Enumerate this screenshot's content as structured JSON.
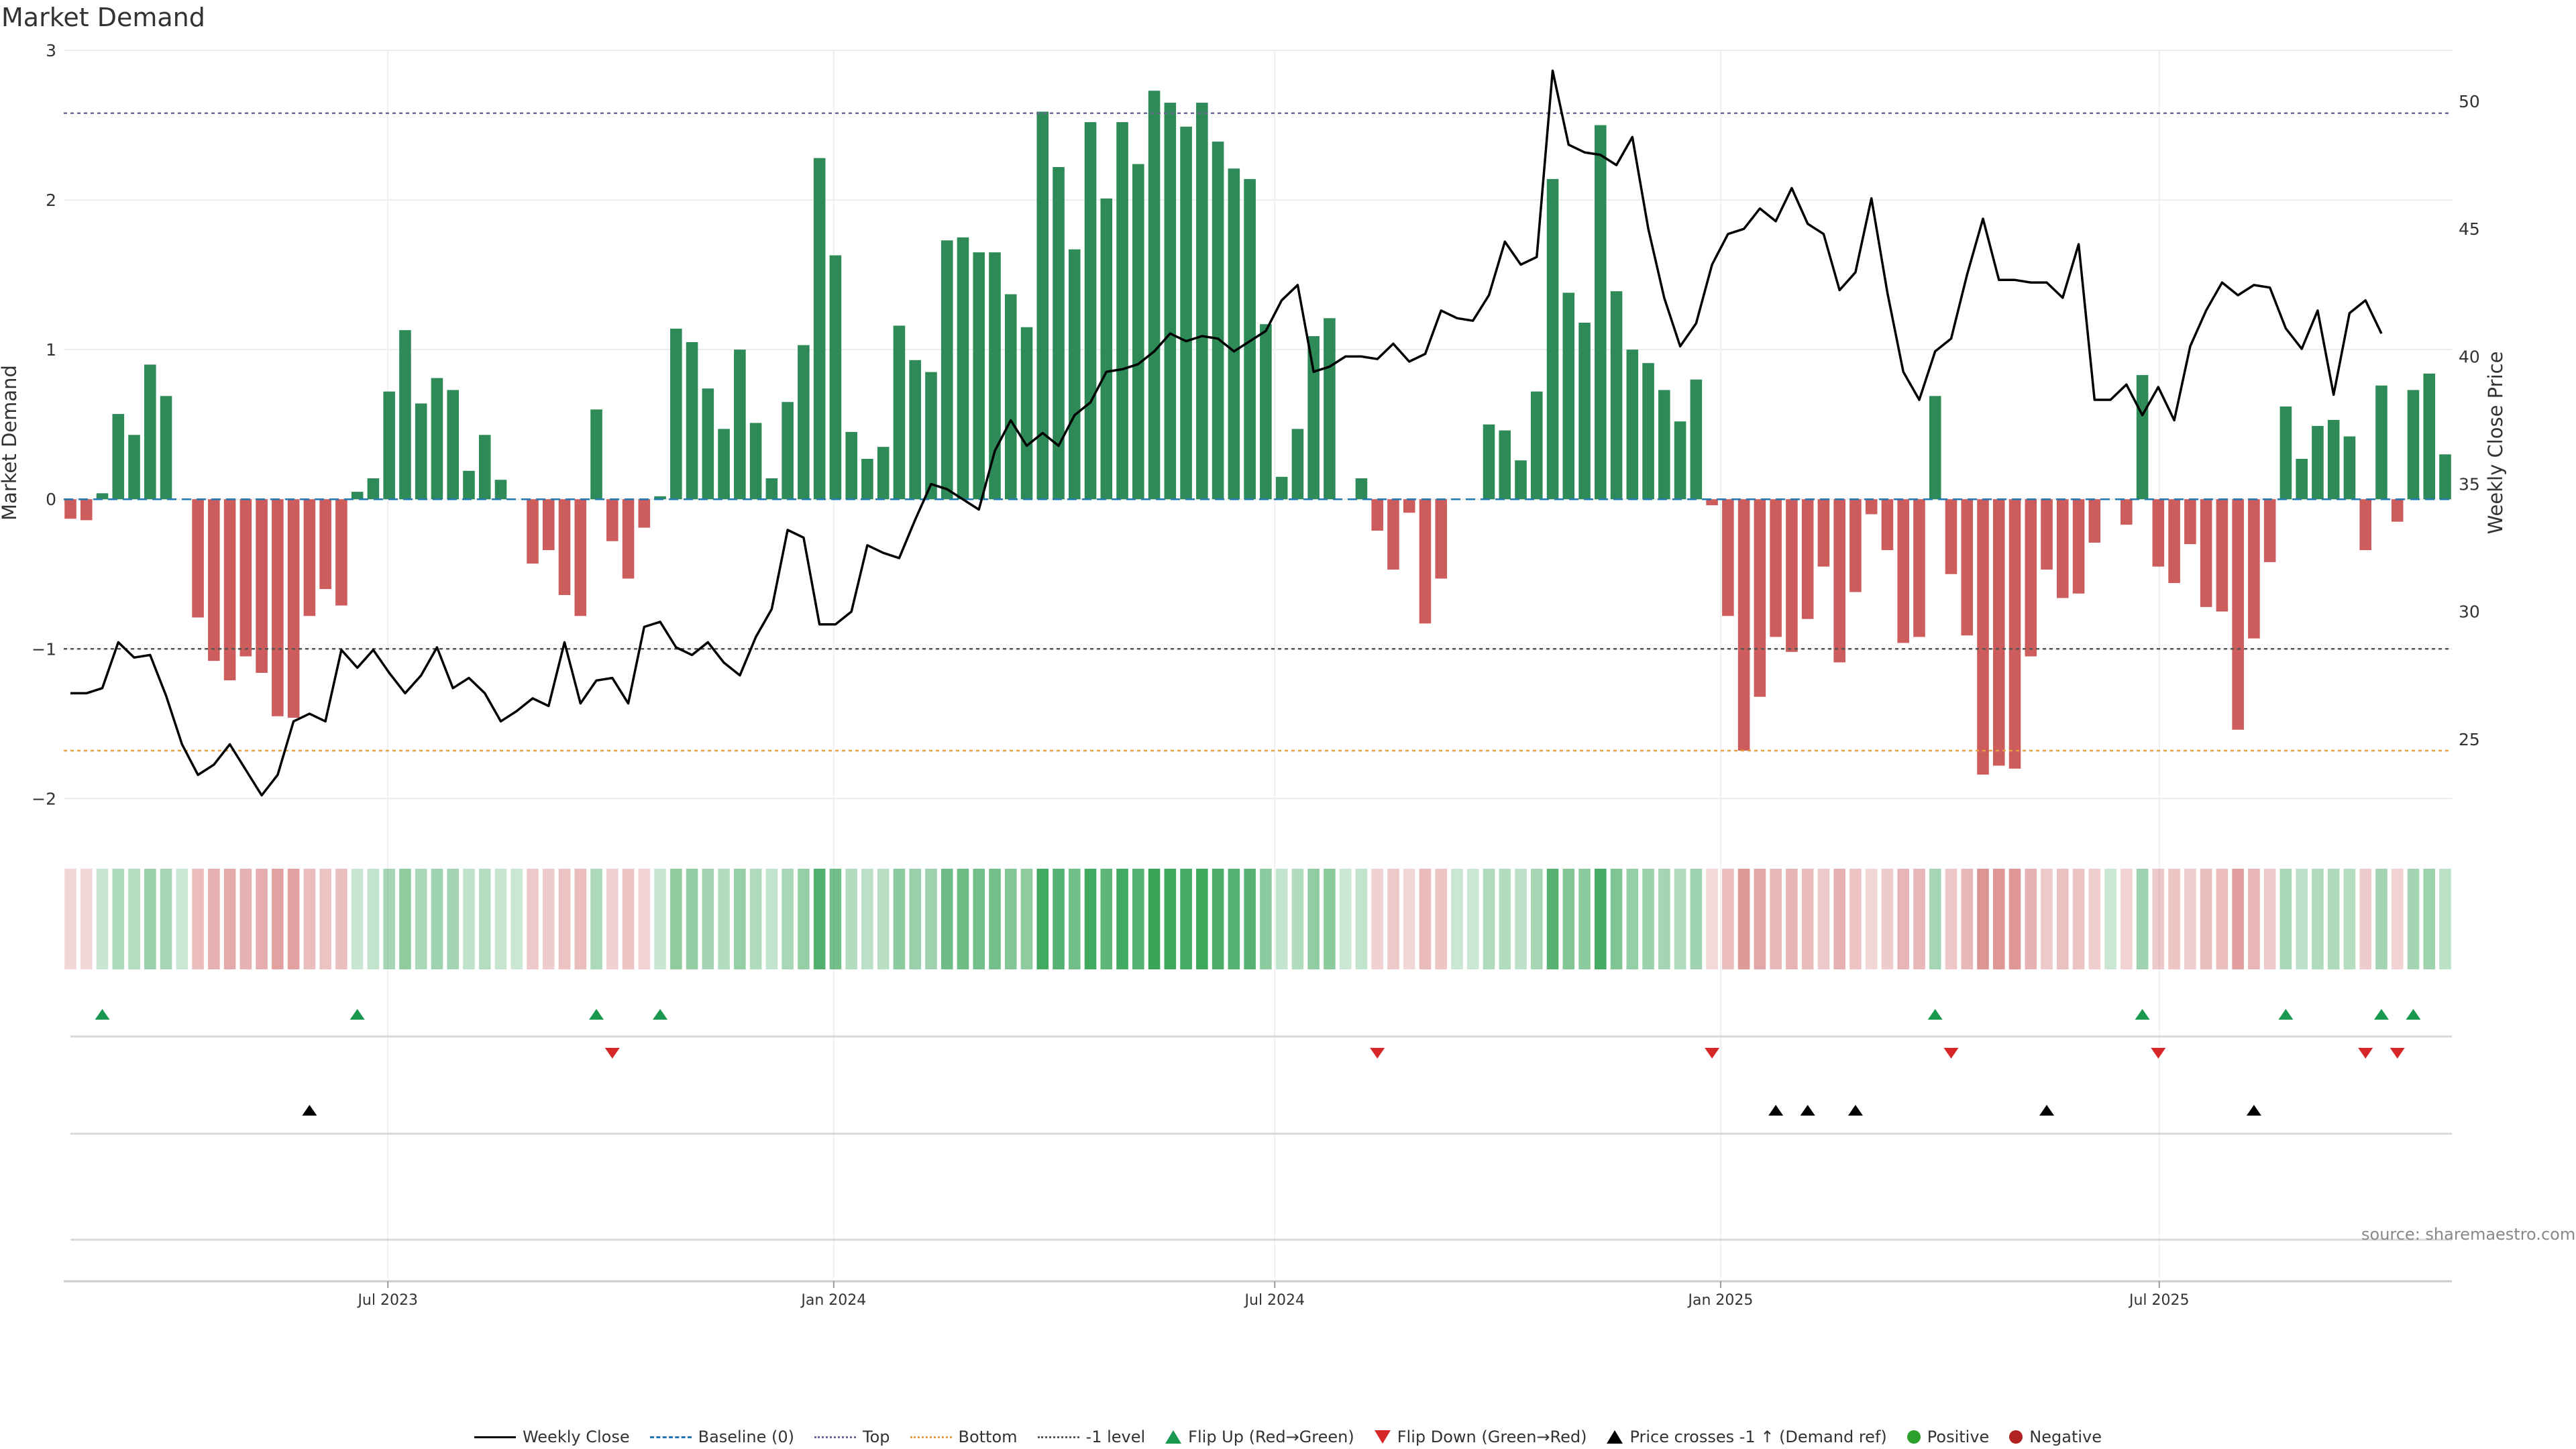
{
  "title": "Market Demand",
  "source": "source: sharemaestro.com",
  "colors": {
    "positive": "#2e8b57",
    "negative": "#cd5c5c",
    "price": "#000000",
    "top": "#6a6a9a",
    "bottom": "#e8a040",
    "minus1": "#555555",
    "flip_up": "#1a9850",
    "flip_down": "#d62728",
    "cross": "#000000"
  },
  "legend": [
    {
      "label": "Weekly Close",
      "kind": "line",
      "color": "#000000",
      "style": "solid"
    },
    {
      "label": "Baseline (0)",
      "kind": "line",
      "color": "#1f77b4",
      "style": "dashed"
    },
    {
      "label": "Top",
      "kind": "line",
      "color": "#6a6a9a",
      "style": "dotted"
    },
    {
      "label": "Bottom",
      "kind": "line",
      "color": "#e8a040",
      "style": "dotted"
    },
    {
      "label": "-1 level",
      "kind": "line",
      "color": "#555555",
      "style": "dotted"
    },
    {
      "label": "Flip Up (Red→Green)",
      "kind": "tri-up"
    },
    {
      "label": "Flip Down (Green→Red)",
      "kind": "tri-down"
    },
    {
      "label": "Price crosses -1 ↑ (Demand ref)",
      "kind": "tri-black"
    },
    {
      "label": "Positive",
      "kind": "dot",
      "color": "#2ca02c"
    },
    {
      "label": "Negative",
      "kind": "dot",
      "color": "#b22222"
    }
  ],
  "chart_data": {
    "type": "bar",
    "title": "Market Demand",
    "ylabel": "Market Demand",
    "y2label": "Weekly Close Price",
    "ylim": [
      -2.2,
      3.0
    ],
    "y2lim": [
      21.5,
      52.0
    ],
    "yticks": [
      -2,
      -1,
      0,
      1,
      2,
      3
    ],
    "ytick_labels": [
      "−2",
      "−1",
      "0",
      "1",
      "2",
      "3"
    ],
    "y2ticks": [
      25,
      30,
      35,
      40,
      45,
      50
    ],
    "y2tick_labels": [
      "25",
      "30",
      "35",
      "40",
      "45",
      "50"
    ],
    "top_level": 2.58,
    "bottom_level": -1.68,
    "minus1_level": -1.0,
    "start_date": "2023-02-20",
    "end_date": "2025-10-27",
    "xticks": [
      {
        "label": "Jul 2023",
        "date": "2023-07-01"
      },
      {
        "label": "Jan 2024",
        "date": "2024-01-01"
      },
      {
        "label": "Jul 2024",
        "date": "2024-07-01"
      },
      {
        "label": "Jan 2025",
        "date": "2025-01-01"
      },
      {
        "label": "Jul 2025",
        "date": "2025-07-01"
      }
    ],
    "demand": [
      -0.13,
      -0.14,
      0.04,
      0.57,
      0.43,
      0.9,
      0.69,
      0,
      -0.79,
      -1.08,
      -1.21,
      -1.05,
      -1.16,
      -1.45,
      -1.46,
      -0.78,
      -0.6,
      -0.71,
      0.05,
      0.14,
      0.72,
      1.13,
      0.64,
      0.81,
      0.73,
      0.19,
      0.43,
      0.13,
      0,
      -0.43,
      -0.34,
      -0.64,
      -0.78,
      0.6,
      -0.28,
      -0.53,
      -0.19,
      0.02,
      1.14,
      1.05,
      0.74,
      0.47,
      1.0,
      0.51,
      0.14,
      0.65,
      1.03,
      2.28,
      1.63,
      0.45,
      0.27,
      0.35,
      1.16,
      0.93,
      0.85,
      1.73,
      1.75,
      1.65,
      1.65,
      1.37,
      1.15,
      2.59,
      2.22,
      1.67,
      2.52,
      2.01,
      2.52,
      2.24,
      2.73,
      2.65,
      2.49,
      2.65,
      2.39,
      2.21,
      2.14,
      1.17,
      0.15,
      0.47,
      1.09,
      1.21,
      0,
      0.14,
      -0.21,
      -0.47,
      -0.09,
      -0.83,
      -0.53,
      0,
      0,
      0.5,
      0.46,
      0.26,
      0.72,
      2.14,
      1.38,
      1.18,
      2.5,
      1.39,
      1.0,
      0.91,
      0.73,
      0.52,
      0.8,
      -0.04,
      -0.78,
      -1.68,
      -1.32,
      -0.92,
      -1.02,
      -0.8,
      -0.45,
      -1.09,
      -0.62,
      -0.1,
      -0.34,
      -0.96,
      -0.92,
      0.69,
      -0.5,
      -0.91,
      -1.84,
      -1.78,
      -1.8,
      -1.05,
      -0.47,
      -0.66,
      -0.63,
      -0.29,
      0,
      -0.17,
      0.83,
      -0.45,
      -0.56,
      -0.3,
      -0.72,
      -0.75,
      -1.54,
      -0.93,
      -0.42,
      0.62,
      0.27,
      0.49,
      0.53,
      0.42,
      -0.34,
      0.76,
      -0.15,
      0.73,
      0.84,
      0.3
    ],
    "price": [
      26.8,
      26.8,
      27.0,
      28.8,
      28.2,
      28.3,
      26.7,
      24.8,
      23.6,
      24.0,
      24.8,
      23.8,
      22.8,
      23.6,
      25.7,
      26.0,
      25.7,
      28.5,
      27.8,
      28.5,
      27.6,
      26.8,
      27.5,
      28.6,
      27.0,
      27.4,
      26.8,
      25.7,
      26.1,
      26.6,
      26.3,
      28.8,
      26.4,
      27.3,
      27.4,
      26.4,
      29.4,
      29.6,
      28.6,
      28.3,
      28.8,
      28.0,
      27.5,
      29.0,
      30.1,
      33.2,
      32.9,
      29.5,
      29.5,
      30.0,
      32.6,
      32.3,
      32.1,
      33.6,
      35.0,
      34.8,
      34.4,
      34.0,
      36.3,
      37.5,
      36.5,
      37.0,
      36.5,
      37.7,
      38.2,
      39.4,
      39.5,
      39.7,
      40.2,
      40.9,
      40.6,
      40.8,
      40.7,
      40.2,
      40.6,
      41.0,
      42.2,
      42.8,
      39.4,
      39.6,
      40.0,
      40.0,
      39.9,
      40.5,
      39.8,
      40.1,
      41.8,
      41.5,
      41.4,
      42.4,
      44.5,
      43.6,
      43.9,
      51.2,
      48.3,
      48.0,
      47.9,
      47.5,
      48.6,
      45.0,
      42.3,
      40.4,
      41.3,
      43.6,
      44.8,
      45.0,
      45.8,
      45.3,
      46.6,
      45.2,
      44.8,
      42.6,
      43.3,
      46.2,
      42.5,
      39.4,
      38.3,
      40.2,
      40.7,
      43.2,
      45.4,
      43.0,
      43.0,
      42.9,
      42.9,
      42.3,
      44.4,
      38.3,
      38.3,
      38.9,
      37.7,
      38.8,
      37.5,
      40.4,
      41.8,
      42.9,
      42.4,
      42.8,
      42.7,
      41.1,
      40.3,
      41.8,
      38.5,
      41.7,
      42.2,
      40.9
    ]
  }
}
